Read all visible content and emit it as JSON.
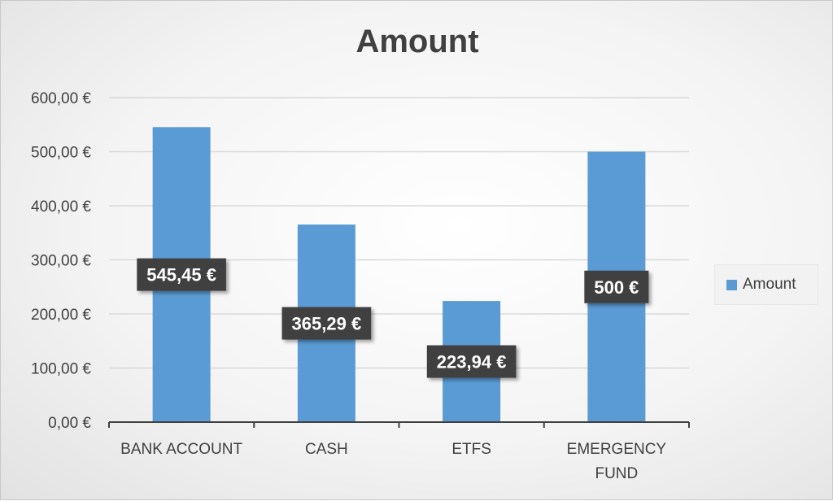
{
  "chart_data": {
    "type": "bar",
    "title": "Amount",
    "categories": [
      "BANK ACCOUNT",
      "CASH",
      "ETFS",
      "EMERGENCY FUND"
    ],
    "category_lines": [
      [
        "BANK ACCOUNT"
      ],
      [
        "CASH"
      ],
      [
        "ETFS"
      ],
      [
        "EMERGENCY",
        "FUND"
      ]
    ],
    "series": [
      {
        "name": "Amount",
        "values": [
          545.45,
          365.29,
          223.94,
          500
        ],
        "data_labels": [
          "545,45 €",
          "365,29 €",
          "223,94 €",
          "500 €"
        ],
        "color": "#5b9bd5"
      }
    ],
    "yticks": [
      "0,00 €",
      "100,00 €",
      "200,00 €",
      "300,00 €",
      "400,00 €",
      "500,00 €",
      "600,00 €"
    ],
    "ylim": [
      0,
      600
    ],
    "grid": true,
    "legend_position": "right",
    "label_box_color": "#404040"
  }
}
